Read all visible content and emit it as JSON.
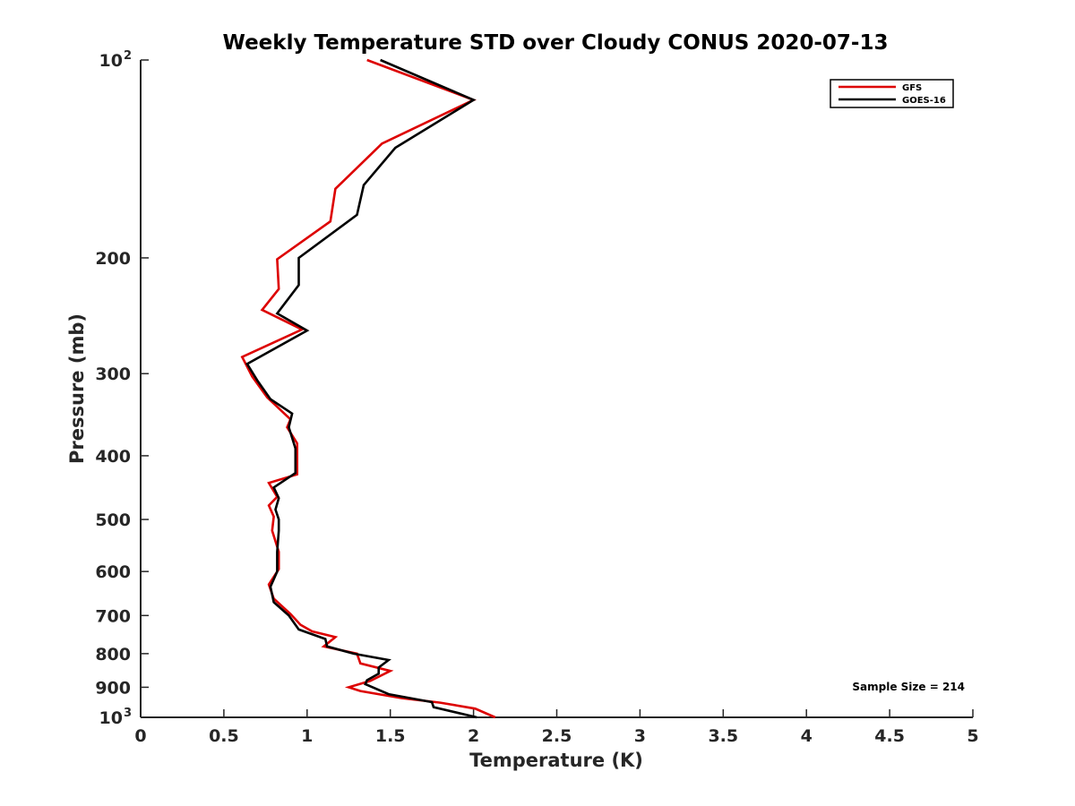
{
  "chart_data": {
    "type": "line",
    "title": "Weekly Temperature STD over Cloudy CONUS 2020-07-13",
    "xlabel": "Temperature (K)",
    "ylabel": "Pressure (mb)",
    "xlim": [
      0,
      5
    ],
    "ylim": [
      100,
      1000
    ],
    "y_scale": "log",
    "y_reversed": true,
    "grid": false,
    "legend_position": "top-right",
    "x_ticks": [
      {
        "value": 0,
        "label": "0"
      },
      {
        "value": 0.5,
        "label": "0.5"
      },
      {
        "value": 1,
        "label": "1"
      },
      {
        "value": 1.5,
        "label": "1.5"
      },
      {
        "value": 2,
        "label": "2"
      },
      {
        "value": 2.5,
        "label": "2.5"
      },
      {
        "value": 3,
        "label": "3"
      },
      {
        "value": 3.5,
        "label": "3.5"
      },
      {
        "value": 4,
        "label": "4"
      },
      {
        "value": 4.5,
        "label": "4.5"
      },
      {
        "value": 5,
        "label": "5"
      }
    ],
    "y_ticks": [
      {
        "value": 100,
        "label": "10",
        "exp": "2"
      },
      {
        "value": 200,
        "label": "200"
      },
      {
        "value": 300,
        "label": "300"
      },
      {
        "value": 400,
        "label": "400"
      },
      {
        "value": 500,
        "label": "500"
      },
      {
        "value": 600,
        "label": "600"
      },
      {
        "value": 700,
        "label": "700"
      },
      {
        "value": 800,
        "label": "800"
      },
      {
        "value": 900,
        "label": "900"
      },
      {
        "value": 1000,
        "label": "10",
        "exp": "3"
      }
    ],
    "annotation": "Sample Size = 214",
    "series": [
      {
        "name": "GFS",
        "color": "#dd0000",
        "points": [
          [
            1.36,
            100
          ],
          [
            2.0,
            115
          ],
          [
            1.45,
            134
          ],
          [
            1.17,
            157
          ],
          [
            1.14,
            176
          ],
          [
            0.82,
            201
          ],
          [
            0.83,
            223
          ],
          [
            0.73,
            240
          ],
          [
            0.97,
            257
          ],
          [
            0.61,
            283
          ],
          [
            0.67,
            303
          ],
          [
            0.76,
            326
          ],
          [
            0.9,
            352
          ],
          [
            0.88,
            362
          ],
          [
            0.94,
            383
          ],
          [
            0.94,
            427
          ],
          [
            0.77,
            440
          ],
          [
            0.82,
            462
          ],
          [
            0.77,
            476
          ],
          [
            0.8,
            495
          ],
          [
            0.79,
            520
          ],
          [
            0.83,
            560
          ],
          [
            0.83,
            595
          ],
          [
            0.77,
            628
          ],
          [
            0.8,
            660
          ],
          [
            0.9,
            696
          ],
          [
            0.96,
            723
          ],
          [
            1.03,
            740
          ],
          [
            1.17,
            755
          ],
          [
            1.1,
            780
          ],
          [
            1.3,
            800
          ],
          [
            1.32,
            828
          ],
          [
            1.5,
            850
          ],
          [
            1.38,
            880
          ],
          [
            1.25,
            900
          ],
          [
            1.32,
            912
          ],
          [
            1.57,
            935
          ],
          [
            1.8,
            950
          ],
          [
            2.01,
            970
          ],
          [
            2.13,
            1000
          ]
        ]
      },
      {
        "name": "GOES-16",
        "color": "#000000",
        "points": [
          [
            1.44,
            100
          ],
          [
            2.0,
            115
          ],
          [
            1.53,
            136
          ],
          [
            1.34,
            155
          ],
          [
            1.3,
            172
          ],
          [
            0.95,
            200
          ],
          [
            0.95,
            220
          ],
          [
            0.82,
            243
          ],
          [
            1.0,
            258
          ],
          [
            0.64,
            290
          ],
          [
            0.7,
            307
          ],
          [
            0.78,
            328
          ],
          [
            0.91,
            345
          ],
          [
            0.89,
            362
          ],
          [
            0.93,
            390
          ],
          [
            0.93,
            425
          ],
          [
            0.8,
            447
          ],
          [
            0.83,
            464
          ],
          [
            0.81,
            483
          ],
          [
            0.83,
            500
          ],
          [
            0.83,
            520
          ],
          [
            0.82,
            560
          ],
          [
            0.82,
            600
          ],
          [
            0.78,
            633
          ],
          [
            0.8,
            668
          ],
          [
            0.89,
            700
          ],
          [
            0.95,
            735
          ],
          [
            1.11,
            760
          ],
          [
            1.12,
            780
          ],
          [
            1.28,
            800
          ],
          [
            1.49,
            818
          ],
          [
            1.43,
            840
          ],
          [
            1.43,
            858
          ],
          [
            1.36,
            878
          ],
          [
            1.35,
            890
          ],
          [
            1.49,
            922
          ],
          [
            1.75,
            948
          ],
          [
            1.76,
            965
          ],
          [
            2.02,
            1000
          ]
        ]
      }
    ]
  }
}
